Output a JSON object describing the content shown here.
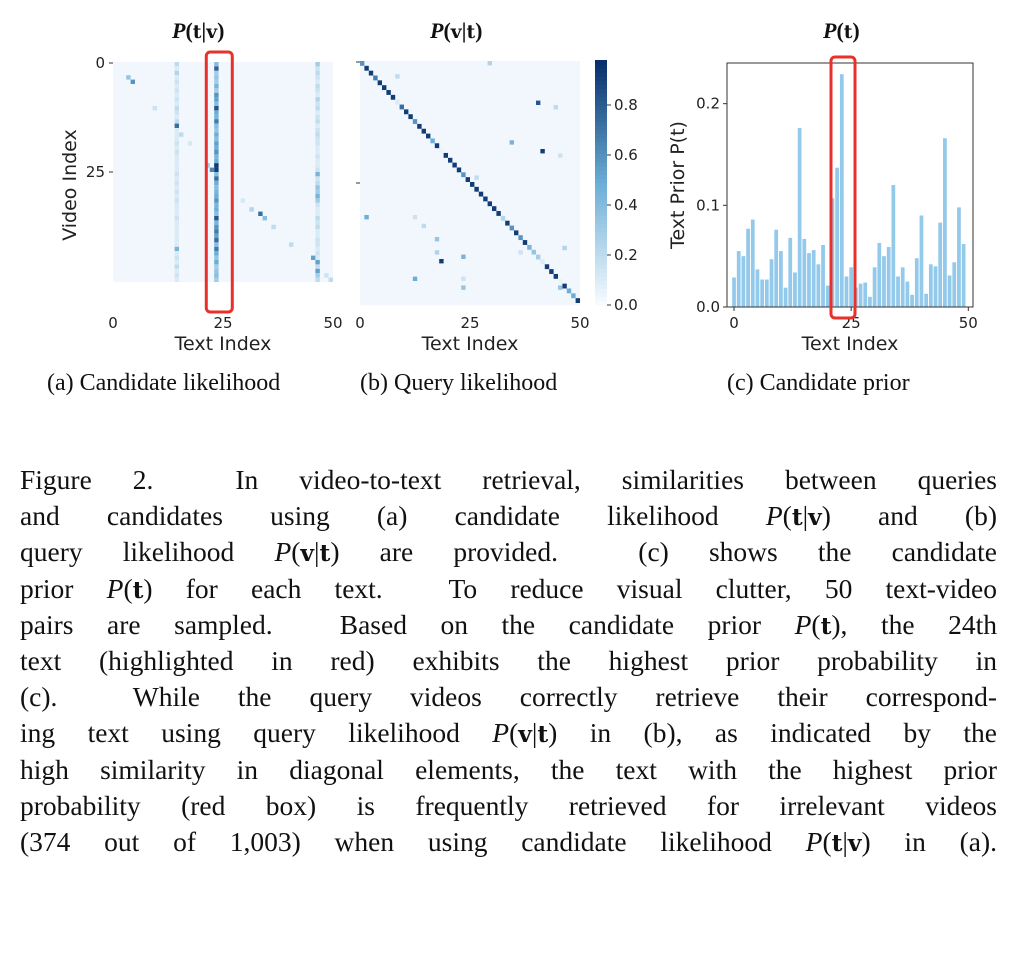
{
  "figure": {
    "titles": {
      "a": "P(t|v)",
      "b": "P(v|t)",
      "c": "P(t)"
    },
    "subcaptions": {
      "a": "(a) Candidate likelihood",
      "b": "(b) Query likelihood",
      "c": "(c) Candidate prior"
    },
    "highlight_color": "#e8312a",
    "bar_color": "#93c9ea"
  },
  "chart_data": [
    {
      "type": "heatmap",
      "title": "P(t|v)",
      "xlabel": "Text Index",
      "ylabel": "Video Index",
      "xticks": [
        "0",
        "25",
        "50"
      ],
      "yticks": [
        "0",
        "25"
      ],
      "size": [
        50,
        50
      ],
      "highlight_column": 23,
      "column_values": {
        "23": [
          0.4,
          0.8,
          0.3,
          0.35,
          0.3,
          0.45,
          0.3,
          0.6,
          0.55,
          0.4,
          0.85,
          0.5,
          0.45,
          0.7,
          0.4,
          0.35,
          0.5,
          0.4,
          0.55,
          0.5,
          0.6,
          0.45,
          0.5,
          0.4,
          0.95,
          0.4,
          0.75,
          0.5,
          0.4,
          0.45,
          0.5,
          0.6,
          0.45,
          0.5,
          0.4,
          0.85,
          0.45,
          0.6,
          0.7,
          0.55,
          0.75,
          0.4,
          0.7,
          0.5,
          0.35,
          0.5,
          0.3,
          0.35,
          0.4,
          0.3
        ],
        "14": [
          0.2,
          0.1,
          0.25,
          0.1,
          0.15,
          0.1,
          0.15,
          0.1,
          0.15,
          0.1,
          0.2,
          0.15,
          0.1,
          0.2,
          0.1,
          0.1,
          0.1,
          0.1,
          0.15,
          0.1,
          0.15,
          0.1,
          0.1,
          0.1,
          0.1,
          0.15,
          0.1,
          0.15,
          0.1,
          0.15,
          0.1,
          0.15,
          0.1,
          0.1,
          0.1,
          0.15,
          0.1,
          0.1,
          0.1,
          0.1,
          0.1,
          0.1,
          0.45,
          0.1,
          0.15,
          0.1,
          0.2,
          0.1,
          0.15,
          0.1
        ],
        "46": [
          0.3,
          0.15,
          0.2,
          0.15,
          0.1,
          0.2,
          0.15,
          0.1,
          0.25,
          0.15,
          0.2,
          0.1,
          0.15,
          0.2,
          0.1,
          0.15,
          0.2,
          0.15,
          0.15,
          0.1,
          0.1,
          0.15,
          0.1,
          0.1,
          0.15,
          0.45,
          0.15,
          0.2,
          0.35,
          0.3,
          0.45,
          0.3,
          0.15,
          0.1,
          0.1,
          0.2,
          0.15,
          0.2,
          0.1,
          0.1,
          0.15,
          0.15,
          0.1,
          0.15,
          0.1,
          0.55,
          0.2,
          0.55,
          0.3,
          0.2
        ]
      },
      "extra_cells": [
        [
          3,
          3,
          0.35
        ],
        [
          4,
          4,
          0.6
        ],
        [
          10,
          9,
          0.15
        ],
        [
          14,
          14,
          0.75
        ],
        [
          16,
          15,
          0.2
        ],
        [
          18,
          17,
          0.12
        ],
        [
          23,
          21,
          0.3
        ],
        [
          24,
          22,
          0.65
        ],
        [
          23,
          23,
          0.95
        ],
        [
          31,
          29,
          0.12
        ],
        [
          33,
          31,
          0.25
        ],
        [
          34,
          33,
          0.75
        ],
        [
          35,
          34,
          0.4
        ],
        [
          37,
          36,
          0.2
        ],
        [
          41,
          40,
          0.2
        ],
        [
          44,
          45,
          0.55
        ],
        [
          48,
          48,
          0.15
        ],
        [
          49,
          49,
          0.2
        ]
      ],
      "colormap": "Blues"
    },
    {
      "type": "heatmap",
      "title": "P(v|t)",
      "xlabel": "Text Index",
      "xticks": [
        "0",
        "25",
        "50"
      ],
      "size": [
        50,
        50
      ],
      "diagonal": [
        0.6,
        0.95,
        0.95,
        0.7,
        0.95,
        0.95,
        0.95,
        0.95,
        0.1,
        0.75,
        0.95,
        0.95,
        0.6,
        0.95,
        0.95,
        0.95,
        0.5,
        0.95,
        0.05,
        0.95,
        0.95,
        0.95,
        0.95,
        0.6,
        0.95,
        0.95,
        0.95,
        0.95,
        0.95,
        0.95,
        0.95,
        0.95,
        0.25,
        0.95,
        0.6,
        0.95,
        0.6,
        0.95,
        0.45,
        0.35,
        0.3,
        0.1,
        0.95,
        0.95,
        0.95,
        0.05,
        0.95,
        0.5,
        0.5,
        0.95
      ],
      "off_diagonal_cells": [
        [
          0,
          29,
          0.25
        ],
        [
          3,
          8,
          0.2
        ],
        [
          9,
          40,
          0.85
        ],
        [
          10,
          44,
          0.2
        ],
        [
          18,
          34,
          0.45
        ],
        [
          20,
          41,
          0.95
        ],
        [
          21,
          45,
          0.15
        ],
        [
          26,
          26,
          0.2
        ],
        [
          35,
          1,
          0.5
        ],
        [
          35,
          12,
          0.15
        ],
        [
          37,
          14,
          0.2
        ],
        [
          40,
          17,
          0.35
        ],
        [
          43,
          17,
          0.25
        ],
        [
          44,
          23,
          0.45
        ],
        [
          45,
          18,
          0.95
        ],
        [
          43,
          36,
          0.15
        ],
        [
          42,
          46,
          0.25
        ],
        [
          49,
          12,
          0.5
        ],
        [
          49,
          23,
          0.15
        ],
        [
          51,
          23,
          0.35
        ],
        [
          51,
          45,
          0.35
        ]
      ],
      "colorbar": {
        "ticks": [
          "0.0",
          "0.2",
          "0.4",
          "0.6",
          "0.8"
        ],
        "range": [
          0,
          1
        ]
      },
      "colormap": "Blues"
    },
    {
      "type": "bar",
      "title": "P(t)",
      "xlabel": "Text Index",
      "ylabel": "Text Prior P(t)",
      "xticks": [
        "0",
        "25",
        "50"
      ],
      "yticks": [
        "0.0",
        "0.1",
        "0.2"
      ],
      "ylim": [
        0,
        0.24
      ],
      "xlim": [
        -1.5,
        51
      ],
      "categories": [
        0,
        1,
        2,
        3,
        4,
        5,
        6,
        7,
        8,
        9,
        10,
        11,
        12,
        13,
        14,
        15,
        16,
        17,
        18,
        19,
        20,
        21,
        22,
        23,
        24,
        25,
        26,
        27,
        28,
        29,
        30,
        31,
        32,
        33,
        34,
        35,
        36,
        37,
        38,
        39,
        40,
        41,
        42,
        43,
        44,
        45,
        46,
        47,
        48,
        49
      ],
      "values": [
        0.029,
        0.055,
        0.05,
        0.077,
        0.086,
        0.037,
        0.027,
        0.027,
        0.047,
        0.076,
        0.055,
        0.019,
        0.068,
        0.034,
        0.176,
        0.067,
        0.053,
        0.056,
        0.042,
        0.061,
        0.021,
        0.107,
        0.137,
        0.229,
        0.03,
        0.039,
        0.019,
        0.023,
        0.024,
        0.01,
        0.039,
        0.063,
        0.05,
        0.059,
        0.12,
        0.03,
        0.039,
        0.025,
        0.012,
        0.048,
        0.09,
        0.013,
        0.042,
        0.04,
        0.083,
        0.166,
        0.031,
        0.044,
        0.098,
        0.062
      ],
      "highlight_range": [
        21,
        25
      ]
    }
  ],
  "caption": [
    [
      {
        "t": "Figure 2.  In video-to-text retrieval, similarities between queries"
      }
    ],
    [
      {
        "t": "and candidates using (a) candidate likelihood "
      },
      {
        "m": "P(t|v)"
      },
      {
        "t": " and (b)"
      }
    ],
    [
      {
        "t": "query likelihood "
      },
      {
        "m": "P(v|t)"
      },
      {
        "t": " are provided.  (c) shows the candidate"
      }
    ],
    [
      {
        "t": "prior "
      },
      {
        "m": "P(t)"
      },
      {
        "t": " for each text.  To reduce visual clutter, 50 text-video"
      }
    ],
    [
      {
        "t": "pairs are sampled.  Based on the candidate prior "
      },
      {
        "m": "P(t)"
      },
      {
        "t": ", the 24th"
      }
    ],
    [
      {
        "t": "text (highlighted in red) exhibits the highest prior probability in"
      }
    ],
    [
      {
        "t": "(c).  While the query videos correctly retrieve their correspond-"
      }
    ],
    [
      {
        "t": "ing text using query likelihood "
      },
      {
        "m": "P(v|t)"
      },
      {
        "t": " in (b), as indicated by the"
      }
    ],
    [
      {
        "t": "high similarity in diagonal elements, the text with the highest prior"
      }
    ],
    [
      {
        "t": "probability (red box) is frequently retrieved for irrelevant videos"
      }
    ],
    [
      {
        "t": "(374 out of 1,003) when using candidate likelihood "
      },
      {
        "m": "P(t|v)"
      },
      {
        "t": " in (a)."
      }
    ]
  ]
}
